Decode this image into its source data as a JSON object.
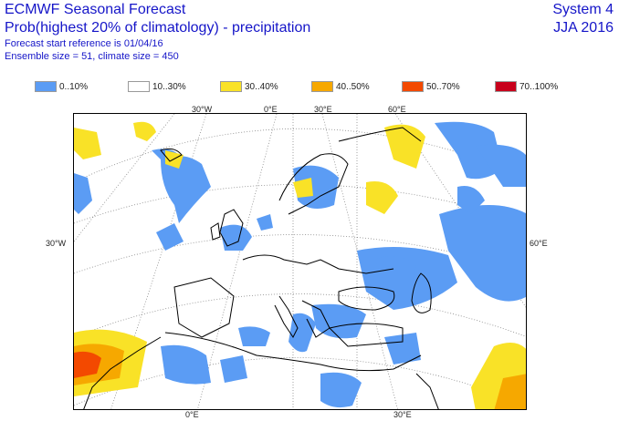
{
  "header": {
    "title_line1": "ECMWF Seasonal Forecast",
    "title_line2": "Prob(highest 20% of climatology) - precipitation",
    "title_line3": "Forecast start reference is 01/04/16",
    "title_line4": "Ensemble size = 51, climate size = 450",
    "system": "System 4",
    "season": "JJA 2016"
  },
  "legend": [
    {
      "label": "0..10%",
      "color": "#5b9cf4"
    },
    {
      "label": "10..30%",
      "color": "#ffffff"
    },
    {
      "label": "30..40%",
      "color": "#f9e227"
    },
    {
      "label": "40..50%",
      "color": "#f6a800"
    },
    {
      "label": "50..70%",
      "color": "#f34900"
    },
    {
      "label": "70..100%",
      "color": "#c8001c"
    }
  ],
  "graticule_labels": {
    "top_30w": "30°W",
    "top_0e": "0°E",
    "top_30e": "30°E",
    "top_60e": "60°E",
    "left_30w": "30°W",
    "right_60e": "60°E",
    "bottom_0e": "0°E",
    "bottom_30e": "30°E"
  },
  "colors": {
    "blue": "#5b9cf4",
    "yellow": "#f9e227",
    "orange": "#f6a800",
    "red_orange": "#f34900",
    "coast": "#000000",
    "graticule": "#888888"
  }
}
